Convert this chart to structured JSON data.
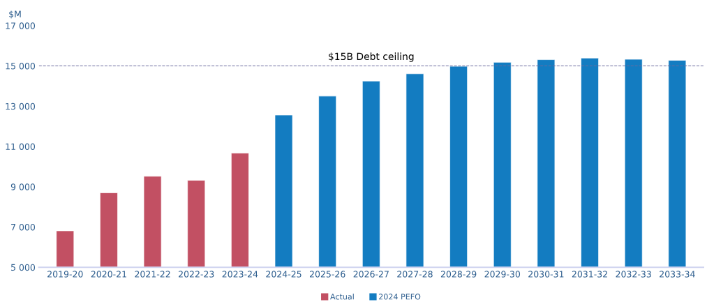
{
  "chart_data": {
    "type": "bar",
    "ylabel": "$M",
    "categories": [
      "2019-20",
      "2020-21",
      "2021-22",
      "2022-23",
      "2023-24",
      "2024-25",
      "2025-26",
      "2026-27",
      "2027-28",
      "2028-29",
      "2029-30",
      "2030-31",
      "2031-32",
      "2032-33",
      "2033-34"
    ],
    "series": [
      {
        "name": "Actual",
        "color": "#c25063",
        "values": [
          6810,
          8700,
          9520,
          9320,
          10670,
          null,
          null,
          null,
          null,
          null,
          null,
          null,
          null,
          null,
          null
        ]
      },
      {
        "name": "2024 PEFO",
        "color": "#137cc1",
        "values": [
          null,
          null,
          null,
          null,
          null,
          12560,
          13500,
          14250,
          14610,
          14980,
          15180,
          15310,
          15390,
          15330,
          15280
        ]
      }
    ],
    "ylim": [
      5000,
      17000
    ],
    "yticks": [
      {
        "value": 5000,
        "label": "5 000"
      },
      {
        "value": 7000,
        "label": "7 000"
      },
      {
        "value": 9000,
        "label": "9 000"
      },
      {
        "value": 11000,
        "label": "11 000"
      },
      {
        "value": 13000,
        "label": "13 000"
      },
      {
        "value": 15000,
        "label": "15 000"
      },
      {
        "value": 17000,
        "label": "17 000"
      }
    ],
    "ref_lines": [
      {
        "axis": "y",
        "value": 15000,
        "label": "$15B Debt ceiling",
        "color": "#6a6a9e",
        "line_style": "dashed"
      }
    ],
    "grid": false,
    "legend": "bottom"
  }
}
